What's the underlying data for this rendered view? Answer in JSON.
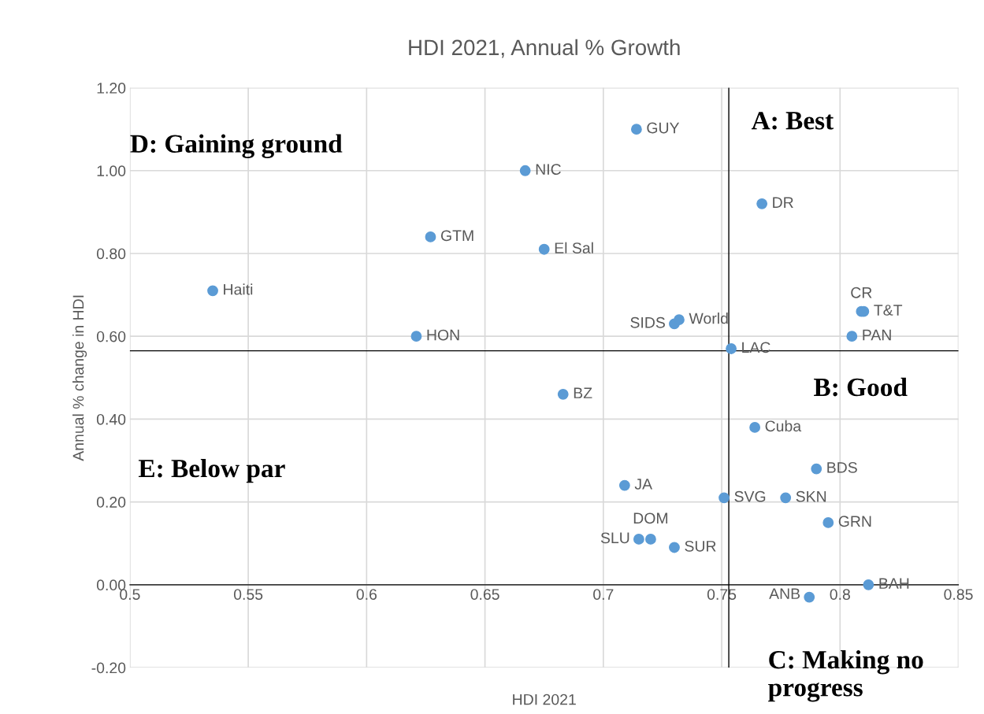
{
  "chart_data": {
    "type": "scatter",
    "title": "HDI 2021, Annual % Growth",
    "xlabel": "HDI 2021",
    "ylabel": "Annual % change in HDI",
    "x": [
      0.535,
      0.621,
      0.627,
      0.667,
      0.675,
      0.714,
      0.683,
      0.767,
      0.73,
      0.732,
      0.754,
      0.809,
      0.81,
      0.805,
      0.764,
      0.79,
      0.777,
      0.751,
      0.709,
      0.795,
      0.72,
      0.715,
      0.73,
      0.787,
      0.812
    ],
    "series": [
      {
        "color": "#5b9bd5",
        "values": [
          0.71,
          0.6,
          0.84,
          1.0,
          0.81,
          1.1,
          0.46,
          0.92,
          0.63,
          0.64,
          0.57,
          0.66,
          0.66,
          0.6,
          0.38,
          0.28,
          0.21,
          0.21,
          0.24,
          0.15,
          0.11,
          0.11,
          0.09,
          -0.03,
          0.0
        ]
      }
    ],
    "annotations": [
      {
        "text": "Haiti",
        "x": 0.535,
        "y": 0.71
      },
      {
        "text": "HON",
        "x": 0.621,
        "y": 0.6
      },
      {
        "text": "GTM",
        "x": 0.627,
        "y": 0.84
      },
      {
        "text": "NIC",
        "x": 0.667,
        "y": 1.0
      },
      {
        "text": "El Sal",
        "x": 0.675,
        "y": 0.81
      },
      {
        "text": "GUY",
        "x": 0.714,
        "y": 1.1
      },
      {
        "text": "BZ",
        "x": 0.683,
        "y": 0.46
      },
      {
        "text": "DR",
        "x": 0.767,
        "y": 0.92
      },
      {
        "text": "SIDS",
        "x": 0.73,
        "y": 0.63
      },
      {
        "text": "World",
        "x": 0.732,
        "y": 0.64
      },
      {
        "text": "LAC",
        "x": 0.754,
        "y": 0.57
      },
      {
        "text": "CR",
        "x": 0.809,
        "y": 0.66
      },
      {
        "text": "T&T",
        "x": 0.81,
        "y": 0.66
      },
      {
        "text": "PAN",
        "x": 0.805,
        "y": 0.6
      },
      {
        "text": "Cuba",
        "x": 0.764,
        "y": 0.38
      },
      {
        "text": "BDS",
        "x": 0.79,
        "y": 0.28
      },
      {
        "text": "SKN",
        "x": 0.777,
        "y": 0.21
      },
      {
        "text": "SVG",
        "x": 0.751,
        "y": 0.21
      },
      {
        "text": "JA",
        "x": 0.709,
        "y": 0.24
      },
      {
        "text": "GRN",
        "x": 0.795,
        "y": 0.15
      },
      {
        "text": "DOM",
        "x": 0.72,
        "y": 0.11
      },
      {
        "text": "SLU",
        "x": 0.715,
        "y": 0.11
      },
      {
        "text": "SUR",
        "x": 0.73,
        "y": 0.09
      },
      {
        "text": "ANB",
        "x": 0.787,
        "y": -0.03
      },
      {
        "text": "BAH",
        "x": 0.812,
        "y": 0.0
      },
      "A: Best",
      "B: Good",
      "C: Making no progress",
      "D: Gaining ground",
      "E: Below par"
    ],
    "ref_lines": [
      {
        "axis": "x",
        "value": 0.753,
        "color": "#000000"
      },
      {
        "axis": "y",
        "value": 0.565,
        "color": "#000000"
      }
    ],
    "xlim": [
      0.5,
      0.85
    ],
    "xticks": [
      0.5,
      0.55,
      0.6,
      0.65,
      0.7,
      0.75,
      0.8,
      0.85
    ],
    "ylim": [
      -0.2,
      1.2
    ],
    "yticks": [
      {
        "value": -0.2,
        "label": "-0.20"
      },
      {
        "value": 0,
        "label": "0.00"
      },
      {
        "value": 0.2,
        "label": "0.20"
      },
      {
        "value": 0.4,
        "label": "0.40"
      },
      {
        "value": 0.6,
        "label": "0.60"
      },
      {
        "value": 0.8,
        "label": "0.80"
      },
      {
        "value": 1.0,
        "label": "1.00"
      },
      {
        "value": 1.2,
        "label": "1.20"
      }
    ],
    "grid": true,
    "marker": "circle",
    "legend": false
  }
}
